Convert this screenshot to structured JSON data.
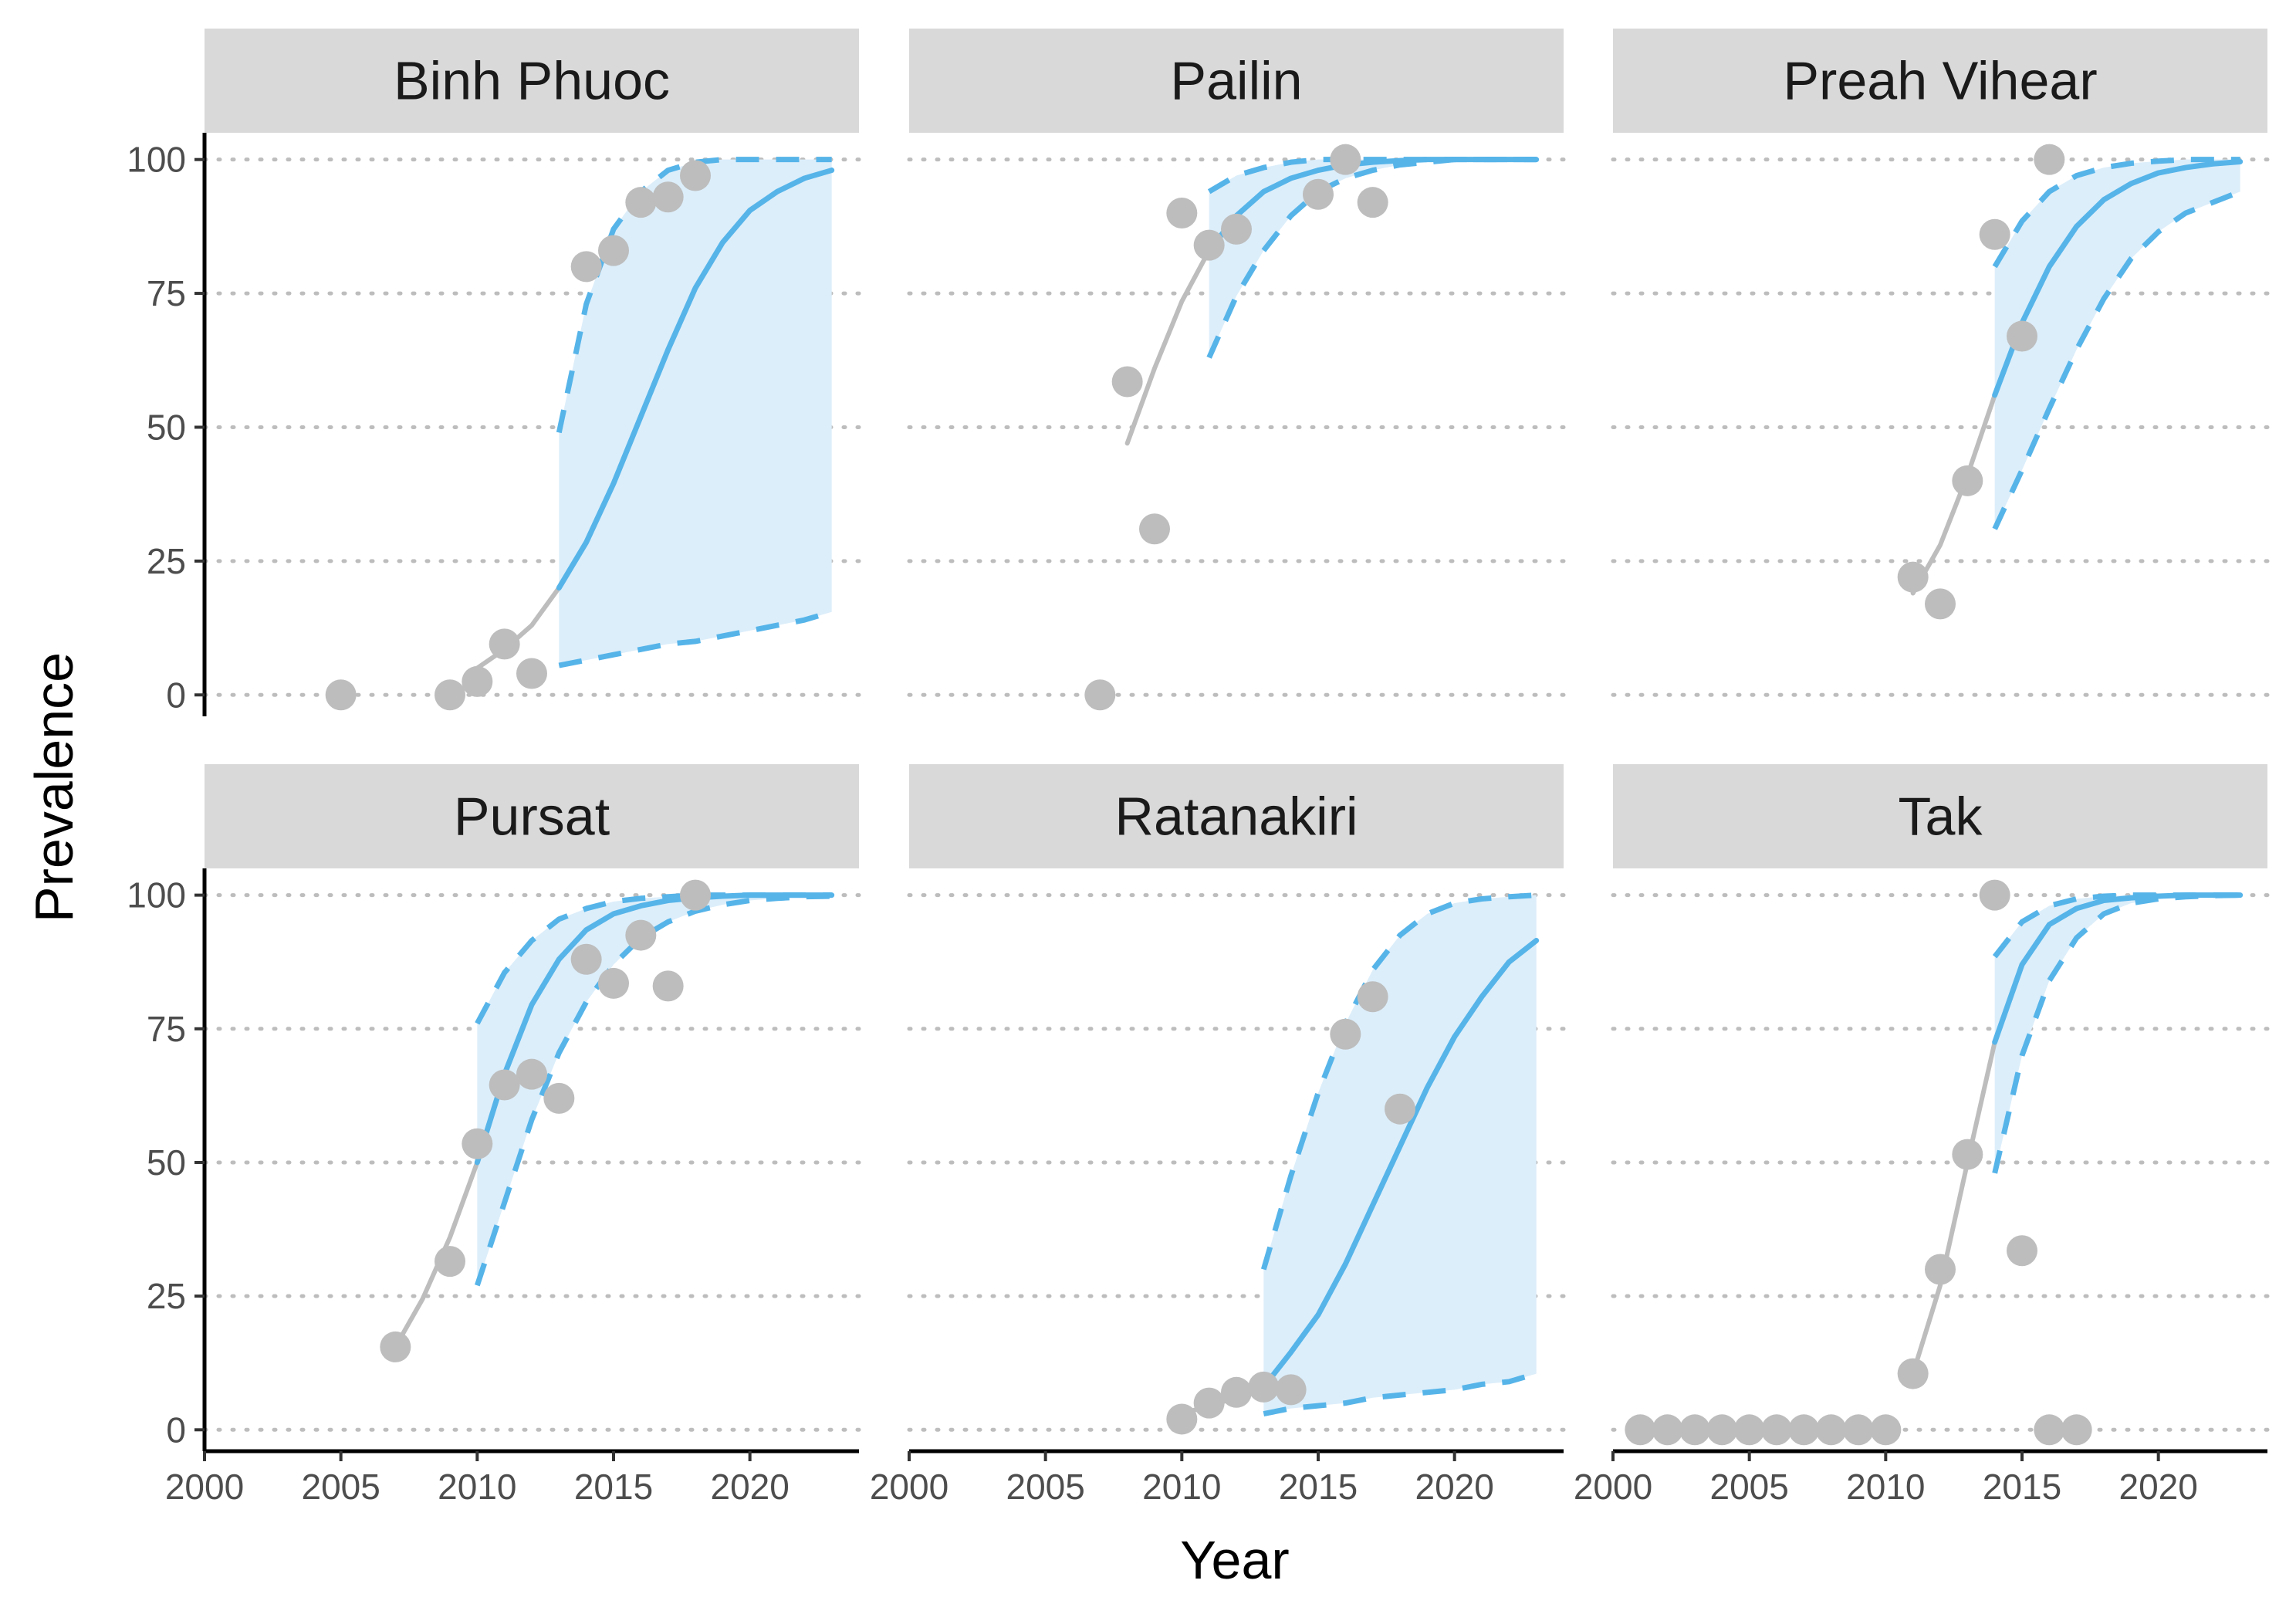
{
  "chart_data": {
    "type": "line",
    "xlabel": "Year",
    "ylabel": "Prevalence",
    "xlim": [
      2000,
      2024
    ],
    "ylim": [
      -4,
      105
    ],
    "x_ticks": [
      2000,
      2005,
      2010,
      2015,
      2020
    ],
    "y_ticks": [
      0,
      25,
      50,
      75,
      100
    ],
    "grid": "horizontal dotted",
    "colors": {
      "observed_points": "#bdbdbd",
      "fitted_line": "#bdbdbd",
      "projection_line": "#56b4e9",
      "projection_band": "#dceefa",
      "strip_bg": "#d9d9d9"
    },
    "panels": [
      {
        "name": "Binh Phuoc",
        "points": [
          [
            2005,
            0
          ],
          [
            2009,
            0
          ],
          [
            2010,
            2.5
          ],
          [
            2011,
            9.5
          ],
          [
            2012,
            4
          ],
          [
            2014,
            80
          ],
          [
            2015,
            83
          ],
          [
            2016,
            92
          ],
          [
            2017,
            93
          ],
          [
            2018,
            97
          ]
        ],
        "fitted": [
          [
            2010,
            5
          ],
          [
            2011,
            8.5
          ],
          [
            2012,
            13
          ],
          [
            2013,
            20
          ]
        ],
        "projection": [
          [
            2013,
            20
          ],
          [
            2014,
            28.5
          ],
          [
            2015,
            39.5
          ],
          [
            2016,
            52
          ],
          [
            2017,
            64.5
          ],
          [
            2018,
            76
          ],
          [
            2019,
            84.5
          ],
          [
            2020,
            90.5
          ],
          [
            2021,
            94
          ],
          [
            2022,
            96.5
          ],
          [
            2023,
            98
          ]
        ],
        "upper": [
          [
            2013,
            49
          ],
          [
            2014,
            73
          ],
          [
            2015,
            87
          ],
          [
            2016,
            94
          ],
          [
            2017,
            98
          ],
          [
            2018,
            99.5
          ],
          [
            2019,
            100
          ],
          [
            2020,
            100
          ],
          [
            2021,
            100
          ],
          [
            2022,
            100
          ],
          [
            2023,
            100
          ]
        ],
        "lower": [
          [
            2013,
            5.5
          ],
          [
            2014,
            6.5
          ],
          [
            2015,
            7.5
          ],
          [
            2016,
            8.5
          ],
          [
            2017,
            9.5
          ],
          [
            2018,
            10
          ],
          [
            2019,
            11
          ],
          [
            2020,
            12
          ],
          [
            2021,
            13
          ],
          [
            2022,
            14
          ],
          [
            2023,
            15.5
          ]
        ]
      },
      {
        "name": "Pailin",
        "points": [
          [
            2007,
            0
          ],
          [
            2008,
            58.5
          ],
          [
            2009,
            31
          ],
          [
            2010,
            90
          ],
          [
            2011,
            84
          ],
          [
            2012,
            87
          ],
          [
            2015,
            93.5
          ],
          [
            2016,
            100
          ],
          [
            2017,
            92
          ]
        ],
        "fitted": [
          [
            2008,
            47
          ],
          [
            2009,
            61
          ],
          [
            2010,
            73.5
          ],
          [
            2011,
            83
          ]
        ],
        "projection": [
          [
            2011,
            83
          ],
          [
            2012,
            89.5
          ],
          [
            2013,
            94
          ],
          [
            2014,
            96.5
          ],
          [
            2015,
            98
          ],
          [
            2016,
            99
          ],
          [
            2017,
            99.5
          ],
          [
            2018,
            99.8
          ],
          [
            2019,
            100
          ],
          [
            2020,
            100
          ],
          [
            2021,
            100
          ],
          [
            2022,
            100
          ],
          [
            2023,
            100
          ]
        ],
        "upper": [
          [
            2011,
            94
          ],
          [
            2012,
            97
          ],
          [
            2013,
            98.5
          ],
          [
            2014,
            99.5
          ],
          [
            2015,
            100
          ],
          [
            2016,
            100
          ],
          [
            2017,
            100
          ],
          [
            2018,
            100
          ],
          [
            2019,
            100
          ],
          [
            2020,
            100
          ],
          [
            2021,
            100
          ],
          [
            2022,
            100
          ],
          [
            2023,
            100
          ]
        ],
        "lower": [
          [
            2011,
            63
          ],
          [
            2012,
            74.5
          ],
          [
            2013,
            83
          ],
          [
            2014,
            89.5
          ],
          [
            2015,
            94
          ],
          [
            2016,
            96.5
          ],
          [
            2017,
            98
          ],
          [
            2018,
            99
          ],
          [
            2019,
            99.5
          ],
          [
            2020,
            100
          ],
          [
            2021,
            100
          ],
          [
            2022,
            100
          ],
          [
            2023,
            100
          ]
        ]
      },
      {
        "name": "Preah Vihear",
        "points": [
          [
            2011,
            22
          ],
          [
            2012,
            17
          ],
          [
            2013,
            40
          ],
          [
            2014,
            86
          ],
          [
            2015,
            67
          ],
          [
            2016,
            100
          ]
        ],
        "fitted": [
          [
            2011,
            19
          ],
          [
            2012,
            28
          ],
          [
            2013,
            41
          ],
          [
            2014,
            56
          ]
        ],
        "projection": [
          [
            2014,
            56
          ],
          [
            2015,
            69.5
          ],
          [
            2016,
            80
          ],
          [
            2017,
            87.5
          ],
          [
            2018,
            92.5
          ],
          [
            2019,
            95.5
          ],
          [
            2020,
            97.5
          ],
          [
            2021,
            98.5
          ],
          [
            2022,
            99.2
          ],
          [
            2023,
            99.6
          ]
        ],
        "upper": [
          [
            2014,
            80
          ],
          [
            2015,
            88.5
          ],
          [
            2016,
            94
          ],
          [
            2017,
            97
          ],
          [
            2018,
            98.5
          ],
          [
            2019,
            99.3
          ],
          [
            2020,
            99.7
          ],
          [
            2021,
            100
          ],
          [
            2022,
            100
          ],
          [
            2023,
            100
          ]
        ],
        "lower": [
          [
            2014,
            31
          ],
          [
            2015,
            42
          ],
          [
            2016,
            53.5
          ],
          [
            2017,
            64.5
          ],
          [
            2018,
            74
          ],
          [
            2019,
            81.5
          ],
          [
            2020,
            86.5
          ],
          [
            2021,
            90
          ],
          [
            2022,
            92
          ],
          [
            2023,
            94
          ]
        ]
      },
      {
        "name": "Pursat",
        "points": [
          [
            2007,
            15.5
          ],
          [
            2009,
            31.5
          ],
          [
            2010,
            53.5
          ],
          [
            2011,
            64.5
          ],
          [
            2012,
            66.5
          ],
          [
            2013,
            62
          ],
          [
            2014,
            88
          ],
          [
            2015,
            83.5
          ],
          [
            2016,
            92.5
          ],
          [
            2017,
            83
          ],
          [
            2018,
            100
          ]
        ],
        "fitted": [
          [
            2007,
            15.5
          ],
          [
            2008,
            24.5
          ],
          [
            2009,
            36
          ],
          [
            2010,
            50
          ]
        ],
        "projection": [
          [
            2010,
            50
          ],
          [
            2011,
            66.5
          ],
          [
            2012,
            79.5
          ],
          [
            2013,
            88
          ],
          [
            2014,
            93.5
          ],
          [
            2015,
            96.5
          ],
          [
            2016,
            98
          ],
          [
            2017,
            99
          ],
          [
            2018,
            99.5
          ],
          [
            2019,
            99.8
          ],
          [
            2020,
            100
          ],
          [
            2021,
            100
          ],
          [
            2022,
            100
          ],
          [
            2023,
            100
          ]
        ],
        "upper": [
          [
            2010,
            76
          ],
          [
            2011,
            85.5
          ],
          [
            2012,
            91.5
          ],
          [
            2013,
            95.5
          ],
          [
            2014,
            97.5
          ],
          [
            2015,
            98.8
          ],
          [
            2016,
            99.4
          ],
          [
            2017,
            99.7
          ],
          [
            2018,
            100
          ],
          [
            2019,
            100
          ],
          [
            2020,
            100
          ],
          [
            2021,
            100
          ],
          [
            2022,
            100
          ],
          [
            2023,
            100
          ]
        ],
        "lower": [
          [
            2010,
            27
          ],
          [
            2011,
            42.5
          ],
          [
            2012,
            58
          ],
          [
            2013,
            70.5
          ],
          [
            2014,
            80
          ],
          [
            2015,
            87
          ],
          [
            2016,
            92
          ],
          [
            2017,
            95
          ],
          [
            2018,
            97
          ],
          [
            2019,
            98.2
          ],
          [
            2020,
            99
          ],
          [
            2021,
            99.4
          ],
          [
            2022,
            99.7
          ],
          [
            2023,
            99.8
          ]
        ]
      },
      {
        "name": "Ratanakiri",
        "points": [
          [
            2010,
            2
          ],
          [
            2011,
            5
          ],
          [
            2012,
            7
          ],
          [
            2013,
            8
          ],
          [
            2014,
            7.5
          ],
          [
            2016,
            74
          ],
          [
            2017,
            81
          ],
          [
            2018,
            60
          ]
        ],
        "fitted": [
          [
            2010,
            3
          ],
          [
            2011,
            4.5
          ],
          [
            2012,
            6
          ],
          [
            2013,
            8
          ]
        ],
        "projection": [
          [
            2013,
            8
          ],
          [
            2014,
            14.5
          ],
          [
            2015,
            21.5
          ],
          [
            2016,
            31
          ],
          [
            2017,
            42
          ],
          [
            2018,
            53
          ],
          [
            2019,
            64
          ],
          [
            2020,
            73.5
          ],
          [
            2021,
            81
          ],
          [
            2022,
            87.5
          ],
          [
            2023,
            91.5
          ]
        ],
        "upper": [
          [
            2013,
            30
          ],
          [
            2014,
            47.5
          ],
          [
            2015,
            63
          ],
          [
            2016,
            76
          ],
          [
            2017,
            86
          ],
          [
            2018,
            92.5
          ],
          [
            2019,
            96.5
          ],
          [
            2020,
            98.5
          ],
          [
            2021,
            99.3
          ],
          [
            2022,
            99.7
          ],
          [
            2023,
            100
          ]
        ],
        "lower": [
          [
            2013,
            3
          ],
          [
            2014,
            4
          ],
          [
            2015,
            4.5
          ],
          [
            2016,
            5
          ],
          [
            2017,
            6
          ],
          [
            2018,
            6.5
          ],
          [
            2019,
            7
          ],
          [
            2020,
            7.5
          ],
          [
            2021,
            8.5
          ],
          [
            2022,
            9
          ],
          [
            2023,
            10.5
          ]
        ]
      },
      {
        "name": "Tak",
        "points": [
          [
            2001,
            0
          ],
          [
            2002,
            0
          ],
          [
            2003,
            0
          ],
          [
            2004,
            0
          ],
          [
            2005,
            0
          ],
          [
            2006,
            0
          ],
          [
            2007,
            0
          ],
          [
            2008,
            0
          ],
          [
            2009,
            0
          ],
          [
            2010,
            0
          ],
          [
            2011,
            10.5
          ],
          [
            2012,
            30
          ],
          [
            2013,
            51.5
          ],
          [
            2014,
            100
          ],
          [
            2015,
            33.5
          ],
          [
            2016,
            0
          ],
          [
            2017,
            0
          ]
        ],
        "fitted": [
          [
            2011,
            10.5
          ],
          [
            2012,
            27
          ],
          [
            2013,
            50
          ],
          [
            2014,
            72.5
          ]
        ],
        "projection": [
          [
            2014,
            72.5
          ],
          [
            2015,
            87
          ],
          [
            2016,
            94.5
          ],
          [
            2017,
            97.5
          ],
          [
            2018,
            99
          ],
          [
            2019,
            99.5
          ],
          [
            2020,
            99.8
          ],
          [
            2021,
            100
          ],
          [
            2022,
            100
          ],
          [
            2023,
            100
          ]
        ],
        "upper": [
          [
            2014,
            88.5
          ],
          [
            2015,
            95
          ],
          [
            2016,
            98
          ],
          [
            2017,
            99.3
          ],
          [
            2018,
            99.8
          ],
          [
            2019,
            100
          ],
          [
            2020,
            100
          ],
          [
            2021,
            100
          ],
          [
            2022,
            100
          ],
          [
            2023,
            100
          ]
        ],
        "lower": [
          [
            2014,
            48
          ],
          [
            2015,
            70
          ],
          [
            2016,
            84
          ],
          [
            2017,
            92
          ],
          [
            2018,
            96.5
          ],
          [
            2019,
            98.5
          ],
          [
            2020,
            99.3
          ],
          [
            2021,
            99.7
          ],
          [
            2022,
            99.9
          ],
          [
            2023,
            100
          ]
        ]
      }
    ]
  }
}
